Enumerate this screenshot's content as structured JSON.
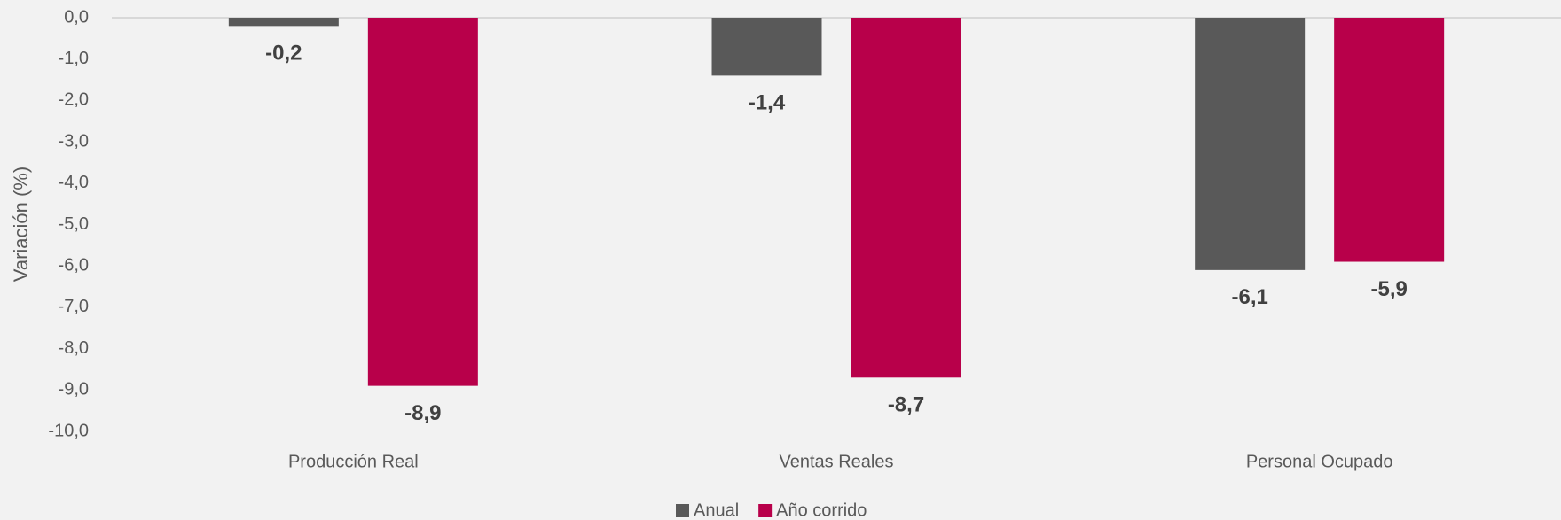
{
  "chart_data": {
    "type": "bar",
    "y_axis_label": "Variación (%)",
    "categories": [
      "Producción Real",
      "Ventas Reales",
      "Personal Ocupado"
    ],
    "series": [
      {
        "name": "Anual",
        "color": "#595959",
        "values": [
          -0.2,
          -1.4,
          -6.1
        ],
        "value_labels": [
          "-0,2",
          "-1,4",
          "-6,1"
        ]
      },
      {
        "name": "Año corrido",
        "color": "#b8004a",
        "values": [
          -8.9,
          -8.7,
          -5.9
        ],
        "value_labels": [
          "-8,9",
          "-8,7",
          "-5,9"
        ]
      }
    ],
    "ylim": [
      -10,
      0
    ],
    "yticks": [
      {
        "value": 0,
        "label": "0,0"
      },
      {
        "value": -1,
        "label": "-1,0"
      },
      {
        "value": -2,
        "label": "-2,0"
      },
      {
        "value": -3,
        "label": "-3,0"
      },
      {
        "value": -4,
        "label": "-4,0"
      },
      {
        "value": -5,
        "label": "-5,0"
      },
      {
        "value": -6,
        "label": "-6,0"
      },
      {
        "value": -7,
        "label": "-7,0"
      },
      {
        "value": -8,
        "label": "-8,0"
      },
      {
        "value": -9,
        "label": "-9,0"
      },
      {
        "value": -10,
        "label": "-10,0"
      }
    ],
    "grid": false,
    "legend": "bottom"
  }
}
